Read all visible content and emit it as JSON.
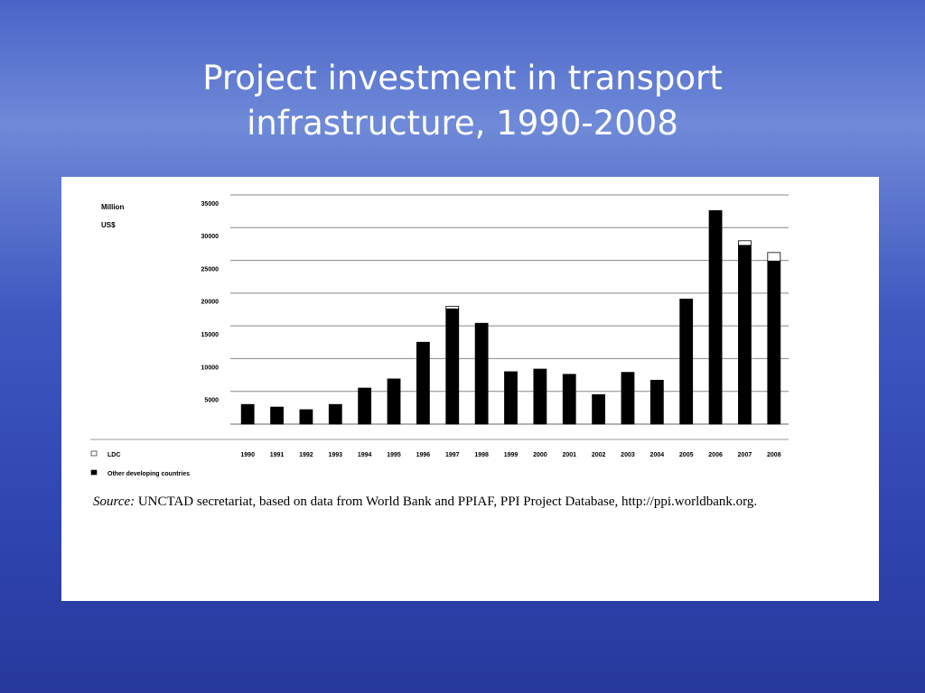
{
  "chart_data": {
    "type": "bar",
    "stacked": true,
    "title": "Project investment in transport infrastructure, 1990-2008",
    "ylabel": "Million US$",
    "categories": [
      "1990",
      "1991",
      "1992",
      "1993",
      "1994",
      "1995",
      "1996",
      "1997",
      "1998",
      "1999",
      "2000",
      "2001",
      "2002",
      "2003",
      "2004",
      "2005",
      "2006",
      "2007",
      "2008"
    ],
    "series": [
      {
        "name": "Other developing countries",
        "color": "#000000",
        "values": [
          3000,
          2600,
          2200,
          3000,
          5500,
          6900,
          12500,
          17600,
          15400,
          8000,
          8400,
          7600,
          4500,
          7900,
          6700,
          19100,
          32600,
          27300,
          24900
        ]
      },
      {
        "name": "LDC",
        "color": "#ffffff",
        "values": [
          0,
          0,
          0,
          0,
          0,
          0,
          0,
          400,
          0,
          0,
          0,
          0,
          0,
          0,
          0,
          0,
          0,
          700,
          1300
        ]
      }
    ],
    "ylim": [
      0,
      35000
    ],
    "yticks": [
      5000,
      10000,
      15000,
      20000,
      25000,
      30000,
      35000
    ],
    "grid": true,
    "source": {
      "label": "Source:",
      "text": "UNCTAD secretariat, based on data from World Bank and PPIAF, PPI Project Database,",
      "link": "http://ppi.worldbank.org",
      "end": "."
    }
  }
}
